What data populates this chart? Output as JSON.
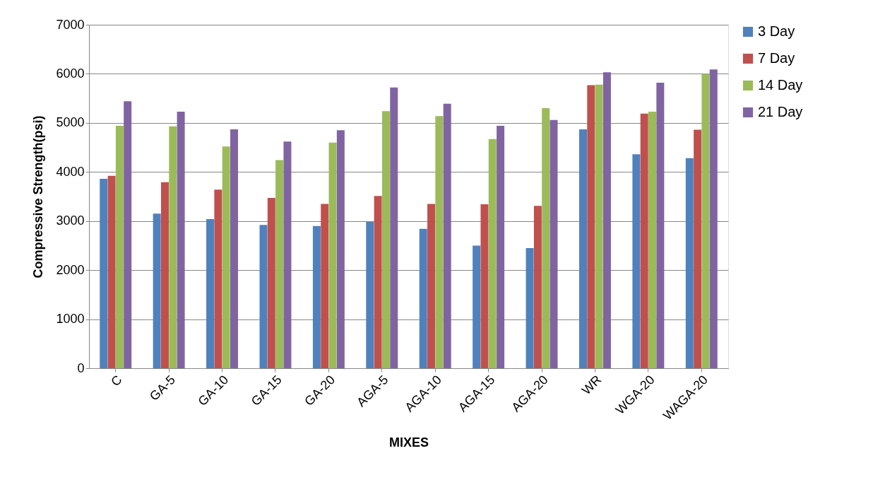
{
  "chart_data": {
    "type": "bar",
    "xlabel": "MIXES",
    "ylabel": "Compressive Strength(psi)",
    "categories": [
      "C",
      "GA-5",
      "GA-10",
      "GA-15",
      "GA-20",
      "AGA-5",
      "AGA-10",
      "AGA-15",
      "AGA-20",
      "WR",
      "WGA-20",
      "WAGA-20"
    ],
    "series": [
      {
        "name": "3 Day",
        "color": "#4f81bd",
        "values": [
          3860,
          3150,
          3040,
          2920,
          2900,
          2980,
          2840,
          2500,
          2450,
          4870,
          4360,
          4280
        ]
      },
      {
        "name": "7 Day",
        "color": "#c0504d",
        "values": [
          3920,
          3790,
          3640,
          3470,
          3350,
          3510,
          3350,
          3340,
          3310,
          5770,
          5190,
          4860
        ]
      },
      {
        "name": "14 Day",
        "color": "#9bbb59",
        "values": [
          4940,
          4930,
          4520,
          4240,
          4600,
          5240,
          5140,
          4670,
          5300,
          5780,
          5230,
          6000
        ]
      },
      {
        "name": "21 Day",
        "color": "#8064a2",
        "values": [
          5440,
          5230,
          4870,
          4620,
          4850,
          5720,
          5390,
          4940,
          5060,
          6030,
          5820,
          6090
        ]
      }
    ],
    "ylim": [
      0,
      7000
    ],
    "yticks": [
      0,
      1000,
      2000,
      3000,
      4000,
      5000,
      6000,
      7000
    ],
    "grid": "y",
    "legend": "right"
  }
}
